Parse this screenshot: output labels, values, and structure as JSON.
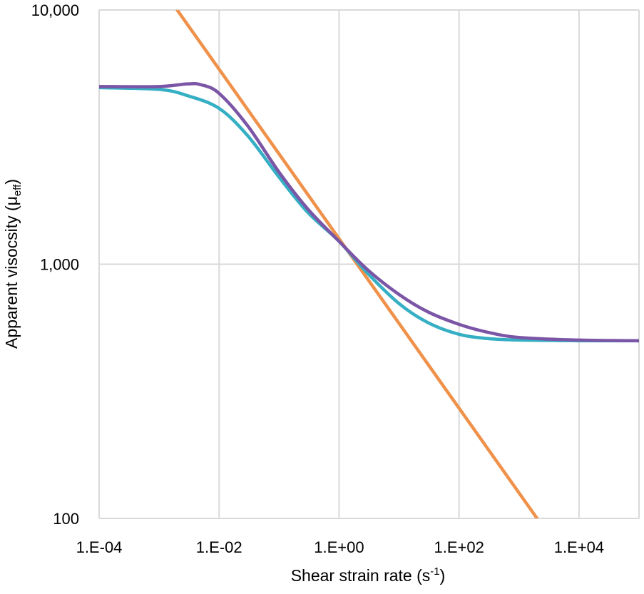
{
  "chart_data": {
    "type": "line",
    "title": "",
    "xlabel": "Shear strain rate (s",
    "xlabel_sup": "-1",
    "xlabel_close": ")",
    "ylabel": "Apparent visocsity (μ",
    "ylabel_sub": "eff",
    "ylabel_close": ")",
    "x_scale": "log",
    "y_scale": "log",
    "xlim": [
      0.0001,
      100000
    ],
    "ylim": [
      100,
      10000
    ],
    "x_ticks": [
      0.0001,
      0.01,
      1,
      100,
      10000
    ],
    "x_tick_labels": [
      "1.E-04",
      "1.E-02",
      "1.E+00",
      "1.E+02",
      "1.E+04"
    ],
    "y_ticks": [
      100,
      1000,
      10000
    ],
    "y_tick_labels": [
      "100",
      "1,000",
      "10,000"
    ],
    "grid": true,
    "legend": "none",
    "series": [
      {
        "color": "#F0914A",
        "x": [
          0.002,
          2000
        ],
        "y": [
          10000,
          100
        ]
      },
      {
        "color": "#35AFC4",
        "x": [
          0.0001,
          0.001,
          0.003,
          0.01,
          0.03,
          0.1,
          0.3,
          1,
          3,
          10,
          30,
          100,
          300,
          1000,
          10000,
          100000
        ],
        "y": [
          4950,
          4870,
          4600,
          4100,
          3200,
          2200,
          1600,
          1230,
          920,
          700,
          590,
          530,
          510,
          503,
          500,
          500
        ]
      },
      {
        "color": "#7B55A6",
        "x": [
          0.0001,
          0.001,
          0.003,
          0.005,
          0.01,
          0.03,
          0.1,
          0.3,
          1,
          3,
          10,
          30,
          100,
          300,
          1000,
          10000,
          100000
        ],
        "y": [
          5000,
          5000,
          5120,
          5080,
          4700,
          3500,
          2300,
          1650,
          1230,
          950,
          760,
          650,
          580,
          540,
          515,
          503,
          500
        ]
      }
    ]
  }
}
